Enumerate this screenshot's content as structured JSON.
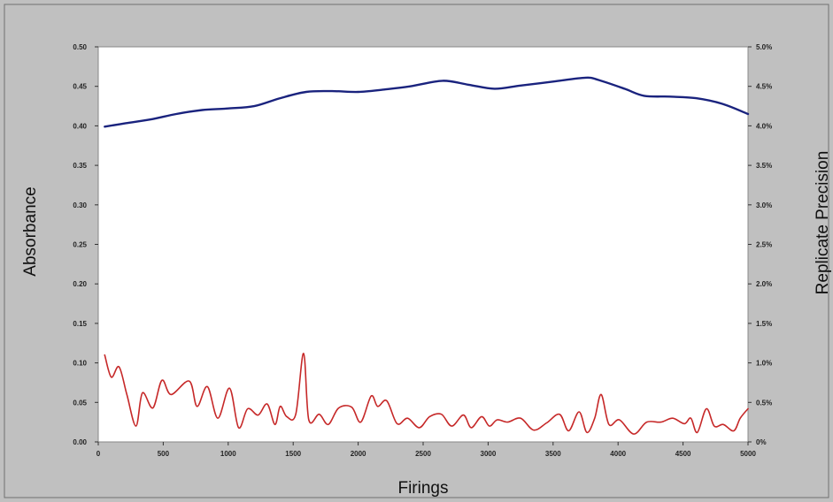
{
  "chart_data": {
    "type": "line",
    "xlabel": "Firings",
    "ylabel": "Absorbance",
    "y2label": "Replicate Precision",
    "xlim": [
      0,
      5000
    ],
    "ylim": [
      0,
      0.5
    ],
    "y2lim": [
      0,
      5.0
    ],
    "x_ticks": [
      "0",
      "500",
      "1000",
      "1500",
      "2000",
      "2500",
      "3000",
      "3500",
      "4000",
      "4500",
      "5000"
    ],
    "y_ticks": [
      "0.00",
      "0.05",
      "0.10",
      "0.15",
      "0.20",
      "0.25",
      "0.30",
      "0.35",
      "0.40",
      "0.45",
      "0.50"
    ],
    "y2_ticks": [
      "0%",
      "0.5%",
      "1.0%",
      "1.5%",
      "2.0%",
      "2.5%",
      "3.0%",
      "3.5%",
      "4.0%",
      "4.5%",
      "5.0%"
    ],
    "grid": false,
    "legend": "none",
    "series": [
      {
        "axis": "left",
        "color": "#1a237e",
        "x": [
          50,
          200,
          400,
          600,
          800,
          1000,
          1200,
          1400,
          1600,
          1800,
          2000,
          2200,
          2400,
          2650,
          2850,
          3050,
          3250,
          3500,
          3750,
          3850,
          4050,
          4200,
          4400,
          4600,
          4800,
          5000
        ],
        "y": [
          0.399,
          0.403,
          0.408,
          0.415,
          0.42,
          0.422,
          0.425,
          0.435,
          0.443,
          0.444,
          0.443,
          0.446,
          0.45,
          0.457,
          0.452,
          0.447,
          0.451,
          0.456,
          0.461,
          0.458,
          0.447,
          0.438,
          0.437,
          0.435,
          0.428,
          0.415
        ]
      },
      {
        "axis": "right",
        "color": "#c62828",
        "x": [
          50,
          100,
          160,
          220,
          290,
          340,
          420,
          490,
          560,
          700,
          760,
          840,
          920,
          1010,
          1080,
          1150,
          1230,
          1300,
          1360,
          1400,
          1450,
          1520,
          1580,
          1620,
          1700,
          1770,
          1850,
          1950,
          2020,
          2100,
          2150,
          2220,
          2300,
          2380,
          2470,
          2550,
          2640,
          2720,
          2810,
          2870,
          2950,
          3010,
          3070,
          3150,
          3250,
          3350,
          3450,
          3550,
          3620,
          3700,
          3760,
          3820,
          3870,
          3930,
          4010,
          4120,
          4220,
          4330,
          4420,
          4510,
          4560,
          4610,
          4680,
          4740,
          4810,
          4890,
          4940,
          5000
        ],
        "y": [
          1.1,
          0.82,
          0.95,
          0.6,
          0.2,
          0.62,
          0.43,
          0.78,
          0.6,
          0.77,
          0.45,
          0.7,
          0.3,
          0.68,
          0.18,
          0.42,
          0.34,
          0.48,
          0.22,
          0.45,
          0.32,
          0.35,
          1.12,
          0.28,
          0.35,
          0.22,
          0.43,
          0.44,
          0.25,
          0.58,
          0.45,
          0.52,
          0.23,
          0.3,
          0.18,
          0.32,
          0.35,
          0.2,
          0.34,
          0.18,
          0.32,
          0.2,
          0.28,
          0.25,
          0.3,
          0.15,
          0.24,
          0.35,
          0.14,
          0.38,
          0.12,
          0.3,
          0.6,
          0.22,
          0.28,
          0.1,
          0.25,
          0.25,
          0.3,
          0.23,
          0.3,
          0.12,
          0.42,
          0.2,
          0.22,
          0.14,
          0.3,
          0.42
        ]
      }
    ]
  }
}
